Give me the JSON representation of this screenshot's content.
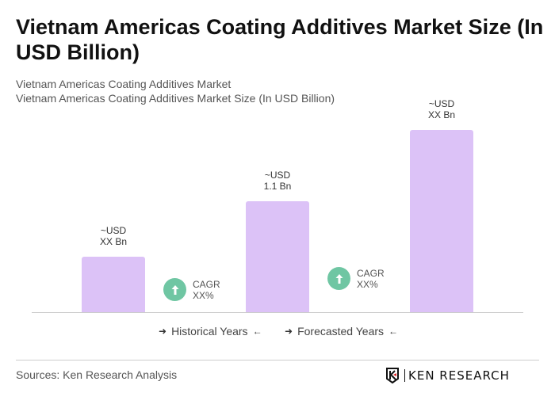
{
  "title": "Vietnam Americas Coating Additives Market Size (In USD Billion)",
  "subtitle1": "Vietnam Americas Coating Additives Market",
  "subtitle2": "Vietnam Americas Coating Additives Market Size (In USD Billion)",
  "chart_data": {
    "type": "bar",
    "categories": [
      "",
      "",
      ""
    ],
    "values": [
      null,
      1.1,
      null
    ],
    "data_labels": [
      {
        "line1": "~USD",
        "line2": "XX Bn"
      },
      {
        "line1": "~USD",
        "line2": "1.1 Bn"
      },
      {
        "line1": "~USD",
        "line2": "XX Bn"
      }
    ],
    "bar_color": "#dcc2f7",
    "annotations": [
      {
        "line1": "CAGR",
        "line2": "XX%"
      },
      {
        "line1": "CAGR",
        "line2": "XX%"
      }
    ],
    "annotation_color": "#6fc6a3",
    "legend": [
      "Historical Years",
      "Forecasted Years"
    ],
    "legend_placement": "bottom",
    "grid": false
  },
  "footer": {
    "source": "Sources: Ken Research Analysis",
    "logo_text": "KEN RESEARCH"
  }
}
